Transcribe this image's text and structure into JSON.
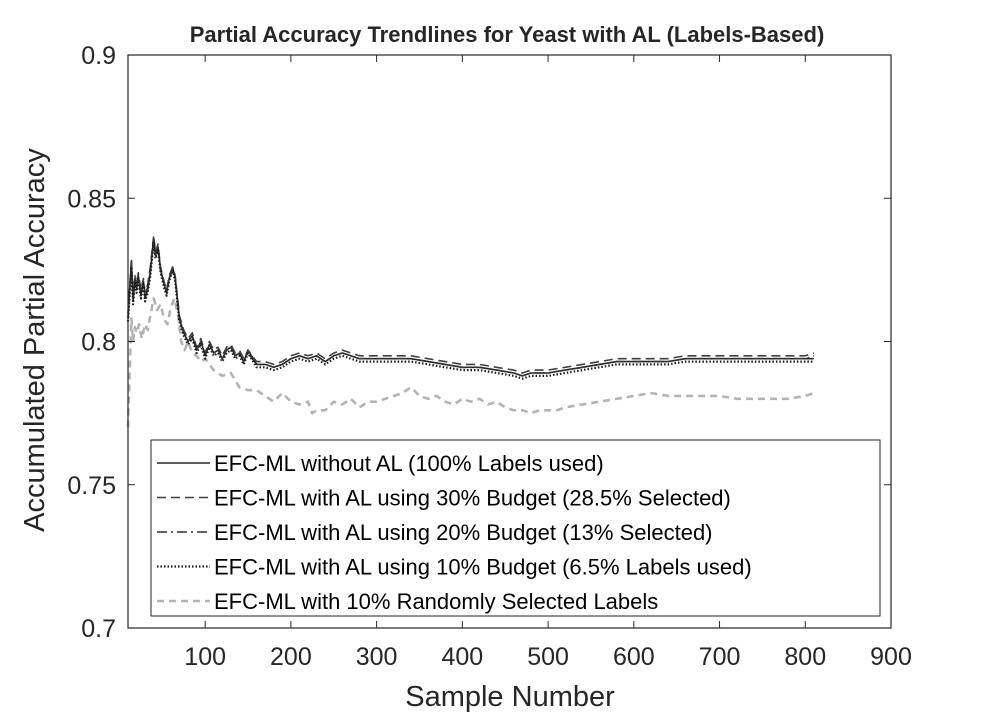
{
  "chart_data": {
    "type": "line",
    "title": "Partial Accuracy Trendlines for Yeast with AL (Labels-Based)",
    "xlabel": "Sample Number",
    "ylabel": "Accumulated Partial Accuracy",
    "xlim": [
      10,
      900
    ],
    "ylim": [
      0.7,
      0.9
    ],
    "xticks": [
      100,
      200,
      300,
      400,
      500,
      600,
      700,
      800,
      900
    ],
    "xtick_labels": [
      "100",
      "200",
      "300",
      "400",
      "500",
      "600",
      "700",
      "800",
      "900"
    ],
    "yticks": [
      0.7,
      0.75,
      0.8,
      0.85,
      0.9
    ],
    "ytick_labels": [
      "0.7",
      "0.75",
      "0.8",
      "0.85",
      "0.9"
    ],
    "grid": false,
    "legend_position": "bottom-left",
    "series": [
      {
        "name": "EFC-ML without AL (100% Labels used)",
        "color": "#262626",
        "style": "solid",
        "x": [
          10,
          14,
          16,
          18,
          20,
          22,
          25,
          28,
          30,
          33,
          36,
          40,
          42,
          45,
          48,
          52,
          55,
          58,
          62,
          65,
          70,
          75,
          80,
          85,
          90,
          95,
          100,
          105,
          110,
          115,
          120,
          125,
          130,
          135,
          140,
          145,
          150,
          160,
          170,
          180,
          190,
          200,
          210,
          220,
          230,
          240,
          250,
          260,
          270,
          280,
          300,
          320,
          340,
          360,
          380,
          400,
          420,
          440,
          460,
          470,
          480,
          490,
          500,
          520,
          540,
          560,
          580,
          600,
          620,
          640,
          660,
          680,
          700,
          720,
          740,
          760,
          780,
          800,
          810
        ],
        "y": [
          0.808,
          0.827,
          0.814,
          0.822,
          0.818,
          0.823,
          0.816,
          0.821,
          0.815,
          0.818,
          0.824,
          0.836,
          0.83,
          0.833,
          0.825,
          0.82,
          0.817,
          0.822,
          0.826,
          0.822,
          0.808,
          0.803,
          0.8,
          0.802,
          0.797,
          0.8,
          0.795,
          0.799,
          0.796,
          0.797,
          0.794,
          0.797,
          0.798,
          0.795,
          0.796,
          0.793,
          0.797,
          0.792,
          0.792,
          0.791,
          0.792,
          0.794,
          0.795,
          0.794,
          0.795,
          0.793,
          0.795,
          0.796,
          0.795,
          0.794,
          0.794,
          0.794,
          0.794,
          0.793,
          0.792,
          0.791,
          0.791,
          0.79,
          0.789,
          0.788,
          0.789,
          0.789,
          0.789,
          0.79,
          0.791,
          0.792,
          0.793,
          0.793,
          0.793,
          0.793,
          0.794,
          0.794,
          0.794,
          0.794,
          0.794,
          0.794,
          0.794,
          0.794,
          0.794
        ]
      },
      {
        "name": "EFC-ML with AL using 30% Budget (28.5% Selected)",
        "color": "#404040",
        "style": "dashed",
        "x": [
          10,
          14,
          16,
          18,
          20,
          22,
          25,
          28,
          30,
          33,
          36,
          40,
          42,
          45,
          48,
          52,
          55,
          58,
          62,
          65,
          70,
          75,
          80,
          85,
          90,
          95,
          100,
          105,
          110,
          115,
          120,
          125,
          130,
          135,
          140,
          145,
          150,
          160,
          170,
          180,
          190,
          200,
          210,
          220,
          230,
          240,
          250,
          260,
          270,
          280,
          300,
          320,
          340,
          360,
          380,
          400,
          420,
          440,
          460,
          470,
          480,
          490,
          500,
          520,
          540,
          560,
          580,
          600,
          620,
          640,
          660,
          680,
          700,
          720,
          740,
          760,
          780,
          800,
          810
        ],
        "y": [
          0.81,
          0.829,
          0.816,
          0.823,
          0.82,
          0.824,
          0.818,
          0.822,
          0.817,
          0.82,
          0.826,
          0.837,
          0.831,
          0.834,
          0.826,
          0.821,
          0.818,
          0.823,
          0.826,
          0.823,
          0.809,
          0.804,
          0.801,
          0.803,
          0.798,
          0.801,
          0.796,
          0.8,
          0.797,
          0.798,
          0.795,
          0.798,
          0.799,
          0.796,
          0.797,
          0.794,
          0.797,
          0.793,
          0.793,
          0.792,
          0.793,
          0.795,
          0.796,
          0.795,
          0.796,
          0.794,
          0.796,
          0.797,
          0.796,
          0.795,
          0.795,
          0.795,
          0.795,
          0.794,
          0.793,
          0.792,
          0.792,
          0.791,
          0.79,
          0.789,
          0.79,
          0.79,
          0.79,
          0.791,
          0.792,
          0.793,
          0.794,
          0.794,
          0.794,
          0.794,
          0.795,
          0.795,
          0.795,
          0.795,
          0.795,
          0.795,
          0.795,
          0.795,
          0.796
        ]
      },
      {
        "name": "EFC-ML with AL using 20% Budget (13% Selected)",
        "color": "#333333",
        "style": "dashdot",
        "x": [
          10,
          14,
          16,
          18,
          20,
          22,
          25,
          28,
          30,
          33,
          36,
          40,
          42,
          45,
          48,
          52,
          55,
          58,
          62,
          65,
          70,
          75,
          80,
          85,
          90,
          95,
          100,
          105,
          110,
          115,
          120,
          125,
          130,
          135,
          140,
          145,
          150,
          160,
          170,
          180,
          190,
          200,
          210,
          220,
          230,
          240,
          250,
          260,
          270,
          280,
          300,
          320,
          340,
          360,
          380,
          400,
          420,
          440,
          460,
          470,
          480,
          490,
          500,
          520,
          540,
          560,
          580,
          600,
          620,
          640,
          660,
          680,
          700,
          720,
          740,
          760,
          780,
          800,
          810
        ],
        "y": [
          0.809,
          0.828,
          0.815,
          0.822,
          0.819,
          0.823,
          0.817,
          0.821,
          0.816,
          0.819,
          0.825,
          0.836,
          0.83,
          0.833,
          0.825,
          0.82,
          0.817,
          0.822,
          0.825,
          0.822,
          0.808,
          0.803,
          0.8,
          0.802,
          0.797,
          0.8,
          0.795,
          0.799,
          0.796,
          0.797,
          0.794,
          0.797,
          0.798,
          0.795,
          0.796,
          0.793,
          0.796,
          0.792,
          0.792,
          0.791,
          0.792,
          0.794,
          0.795,
          0.794,
          0.795,
          0.793,
          0.795,
          0.796,
          0.795,
          0.794,
          0.794,
          0.794,
          0.794,
          0.793,
          0.792,
          0.791,
          0.791,
          0.79,
          0.789,
          0.788,
          0.789,
          0.789,
          0.789,
          0.79,
          0.791,
          0.792,
          0.793,
          0.793,
          0.793,
          0.793,
          0.794,
          0.794,
          0.794,
          0.794,
          0.794,
          0.794,
          0.794,
          0.794,
          0.795
        ]
      },
      {
        "name": "EFC-ML with AL using 10% Budget (6.5% Labels used)",
        "color": "#1a1a1a",
        "style": "dotted",
        "x": [
          10,
          14,
          16,
          18,
          20,
          22,
          25,
          28,
          30,
          33,
          36,
          40,
          42,
          45,
          48,
          52,
          55,
          58,
          62,
          65,
          70,
          75,
          80,
          85,
          90,
          95,
          100,
          105,
          110,
          115,
          120,
          125,
          130,
          135,
          140,
          145,
          150,
          160,
          170,
          180,
          190,
          200,
          210,
          220,
          230,
          240,
          250,
          260,
          270,
          280,
          300,
          320,
          340,
          360,
          380,
          400,
          420,
          440,
          460,
          470,
          480,
          490,
          500,
          520,
          540,
          560,
          580,
          600,
          620,
          640,
          660,
          680,
          700,
          720,
          740,
          760,
          780,
          800,
          810
        ],
        "y": [
          0.807,
          0.826,
          0.813,
          0.821,
          0.817,
          0.822,
          0.815,
          0.82,
          0.814,
          0.817,
          0.823,
          0.835,
          0.829,
          0.832,
          0.824,
          0.819,
          0.816,
          0.821,
          0.825,
          0.821,
          0.807,
          0.802,
          0.799,
          0.801,
          0.796,
          0.799,
          0.794,
          0.798,
          0.795,
          0.796,
          0.793,
          0.796,
          0.797,
          0.794,
          0.795,
          0.792,
          0.796,
          0.791,
          0.791,
          0.79,
          0.791,
          0.793,
          0.794,
          0.793,
          0.794,
          0.792,
          0.794,
          0.795,
          0.794,
          0.793,
          0.793,
          0.793,
          0.793,
          0.792,
          0.791,
          0.79,
          0.79,
          0.789,
          0.788,
          0.787,
          0.788,
          0.788,
          0.788,
          0.789,
          0.79,
          0.791,
          0.792,
          0.792,
          0.792,
          0.792,
          0.793,
          0.793,
          0.793,
          0.793,
          0.793,
          0.793,
          0.793,
          0.793,
          0.793
        ]
      },
      {
        "name": "EFC-ML with 10% Randomly Selected Labels",
        "color": "#b3b3b3",
        "style": "dashed",
        "x": [
          10,
          12,
          14,
          16,
          18,
          20,
          23,
          26,
          30,
          33,
          36,
          40,
          44,
          48,
          52,
          56,
          60,
          64,
          68,
          72,
          76,
          80,
          85,
          90,
          95,
          100,
          110,
          120,
          130,
          140,
          150,
          160,
          170,
          180,
          190,
          200,
          210,
          220,
          225,
          230,
          240,
          250,
          260,
          270,
          280,
          290,
          300,
          310,
          320,
          330,
          340,
          350,
          360,
          370,
          380,
          390,
          400,
          410,
          420,
          430,
          440,
          450,
          460,
          470,
          480,
          490,
          500,
          510,
          520,
          540,
          560,
          580,
          600,
          620,
          640,
          660,
          680,
          700,
          720,
          740,
          760,
          780,
          800,
          810
        ],
        "y": [
          0.77,
          0.79,
          0.808,
          0.8,
          0.805,
          0.803,
          0.806,
          0.801,
          0.806,
          0.804,
          0.809,
          0.815,
          0.811,
          0.813,
          0.808,
          0.806,
          0.812,
          0.815,
          0.81,
          0.8,
          0.797,
          0.8,
          0.796,
          0.795,
          0.793,
          0.794,
          0.79,
          0.788,
          0.789,
          0.784,
          0.783,
          0.783,
          0.781,
          0.779,
          0.782,
          0.779,
          0.778,
          0.779,
          0.775,
          0.776,
          0.776,
          0.779,
          0.778,
          0.78,
          0.777,
          0.779,
          0.779,
          0.78,
          0.781,
          0.782,
          0.784,
          0.781,
          0.78,
          0.781,
          0.779,
          0.778,
          0.78,
          0.779,
          0.78,
          0.778,
          0.779,
          0.777,
          0.776,
          0.776,
          0.775,
          0.776,
          0.776,
          0.776,
          0.777,
          0.778,
          0.779,
          0.78,
          0.781,
          0.782,
          0.781,
          0.781,
          0.781,
          0.781,
          0.78,
          0.78,
          0.78,
          0.78,
          0.781,
          0.782
        ]
      }
    ]
  }
}
